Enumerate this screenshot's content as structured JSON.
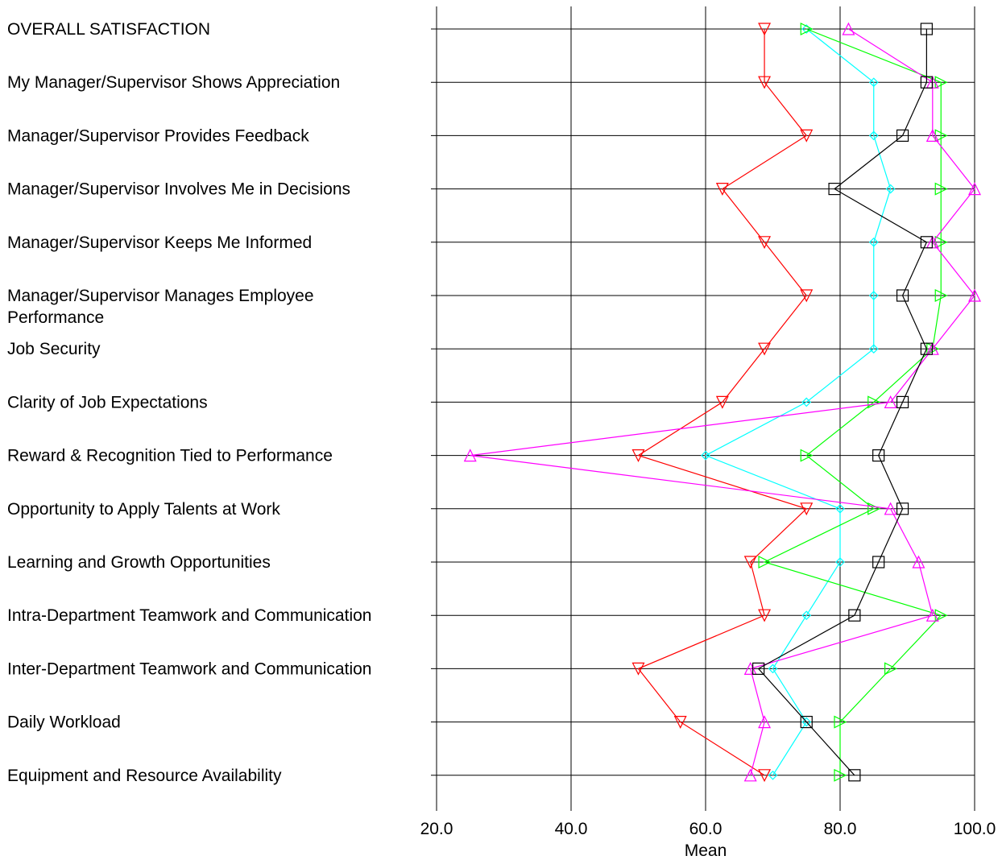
{
  "chart_data": {
    "type": "line",
    "orientation": "horizontal",
    "xlabel": "Mean",
    "xlim": [
      20,
      100
    ],
    "x_ticks": [
      "20.0",
      "40.0",
      "60.0",
      "80.0",
      "100.0"
    ],
    "grid": "vertical lines at major ticks",
    "categories": [
      "OVERALL SATISFACTION",
      "My Manager/Supervisor Shows Appreciation",
      "Manager/Supervisor Provides Feedback",
      "Manager/Supervisor Involves Me in Decisions",
      "Manager/Supervisor Keeps Me Informed",
      "Manager/Supervisor Manages Employee Performance",
      "Job Security",
      "Clarity of Job Expectations",
      "Reward & Recognition Tied to Performance",
      "Opportunity to Apply Talents at Work",
      "Learning and Growth Opportunities",
      "Intra-Department Teamwork and Communication",
      "Inter-Department Teamwork and Communication",
      "Daily Workload",
      "Equipment and Resource Availability"
    ],
    "series": [
      {
        "color": "#ff0000",
        "marker": "triangle-down",
        "values": [
          68.75,
          68.75,
          75.0,
          62.5,
          68.75,
          75.0,
          68.75,
          62.5,
          50.0,
          75.0,
          66.67,
          68.75,
          50.0,
          56.25,
          68.75
        ]
      },
      {
        "color": "#00ffff",
        "marker": "diamond",
        "values": [
          75.0,
          85.0,
          85.0,
          87.5,
          85.0,
          85.0,
          85.0,
          75.0,
          60.0,
          80.0,
          80.0,
          75.0,
          70.0,
          75.0,
          70.0
        ]
      },
      {
        "color": "#00ff00",
        "marker": "triangle-right",
        "values": [
          75.0,
          95.0,
          95.0,
          95.0,
          95.0,
          95.0,
          93.75,
          85.0,
          75.0,
          85.0,
          68.75,
          95.0,
          87.5,
          80.0,
          80.0
        ]
      },
      {
        "color": "#ff00ff",
        "marker": "triangle-up",
        "values": [
          81.25,
          93.75,
          93.75,
          100.0,
          93.75,
          100.0,
          93.75,
          87.5,
          25.0,
          87.5,
          91.67,
          93.75,
          66.67,
          68.75,
          66.67
        ]
      },
      {
        "color": "#000000",
        "marker": "square",
        "values": [
          92.86,
          92.86,
          89.29,
          79.17,
          92.86,
          89.29,
          92.86,
          89.29,
          85.71,
          89.29,
          85.71,
          82.14,
          67.86,
          75.0,
          82.14
        ]
      }
    ]
  }
}
